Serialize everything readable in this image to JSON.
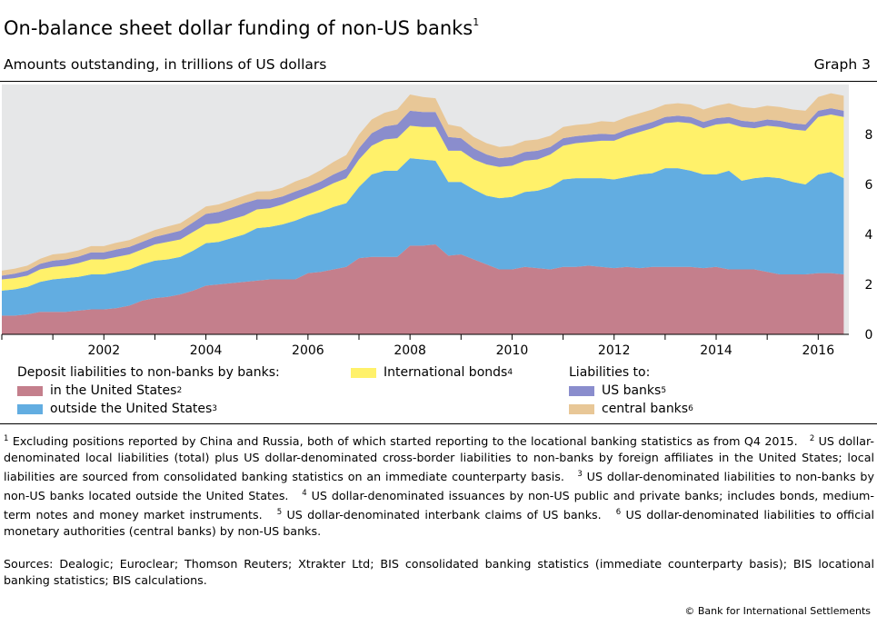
{
  "header": {
    "title": "On-balance sheet dollar funding of non-US banks",
    "title_note": "1",
    "subtitle": "Amounts outstanding, in trillions of US dollars",
    "graph_label": "Graph 3"
  },
  "legend": {
    "group1_heading": "Deposit liabilities to non-banks by banks:",
    "group2_heading": "Liabilities to:",
    "items": [
      {
        "label": "in the United States",
        "note": "2",
        "color": "#c47f8c"
      },
      {
        "label": "outside the United States",
        "note": "3",
        "color": "#62ade1"
      },
      {
        "label": "International bonds",
        "note": "4",
        "color": "#fff16a"
      },
      {
        "label": "US banks",
        "note": "5",
        "color": "#8a8dcd"
      },
      {
        "label": "central banks",
        "note": "6",
        "color": "#e8c797"
      }
    ]
  },
  "chart_data": {
    "type": "area",
    "stacked": true,
    "x": [
      2000.0,
      2000.25,
      2000.5,
      2000.75,
      2001.0,
      2001.25,
      2001.5,
      2001.75,
      2002.0,
      2002.25,
      2002.5,
      2002.75,
      2003.0,
      2003.25,
      2003.5,
      2003.75,
      2004.0,
      2004.25,
      2004.5,
      2004.75,
      2005.0,
      2005.25,
      2005.5,
      2005.75,
      2006.0,
      2006.25,
      2006.5,
      2006.75,
      2007.0,
      2007.25,
      2007.5,
      2007.75,
      2008.0,
      2008.25,
      2008.5,
      2008.75,
      2009.0,
      2009.25,
      2009.5,
      2009.75,
      2010.0,
      2010.25,
      2010.5,
      2010.75,
      2011.0,
      2011.25,
      2011.5,
      2011.75,
      2012.0,
      2012.25,
      2012.5,
      2012.75,
      2013.0,
      2013.25,
      2013.5,
      2013.75,
      2014.0,
      2014.25,
      2014.5,
      2014.75,
      2015.0,
      2015.25,
      2015.5,
      2015.75,
      2016.0,
      2016.25,
      2016.5
    ],
    "series": [
      {
        "name": "in the United States",
        "values": [
          0.75,
          0.75,
          0.8,
          0.9,
          0.9,
          0.9,
          0.95,
          1.0,
          1.0,
          1.05,
          1.15,
          1.35,
          1.45,
          1.5,
          1.6,
          1.75,
          1.95,
          2.0,
          2.05,
          2.1,
          2.15,
          2.2,
          2.2,
          2.2,
          2.45,
          2.5,
          2.6,
          2.7,
          3.05,
          3.1,
          3.1,
          3.1,
          3.55,
          3.55,
          3.6,
          3.15,
          3.2,
          3.0,
          2.8,
          2.6,
          2.6,
          2.7,
          2.65,
          2.6,
          2.7,
          2.7,
          2.75,
          2.7,
          2.65,
          2.7,
          2.65,
          2.7,
          2.7,
          2.7,
          2.7,
          2.65,
          2.7,
          2.6,
          2.6,
          2.6,
          2.5,
          2.4,
          2.4,
          2.4,
          2.45,
          2.45,
          2.4
        ]
      },
      {
        "name": "outside the United States",
        "values": [
          1.0,
          1.05,
          1.1,
          1.2,
          1.3,
          1.35,
          1.35,
          1.4,
          1.4,
          1.45,
          1.45,
          1.45,
          1.5,
          1.5,
          1.5,
          1.6,
          1.7,
          1.7,
          1.8,
          1.9,
          2.1,
          2.1,
          2.2,
          2.35,
          2.3,
          2.4,
          2.5,
          2.55,
          2.85,
          3.3,
          3.45,
          3.45,
          3.5,
          3.45,
          3.35,
          2.95,
          2.9,
          2.8,
          2.75,
          2.85,
          2.9,
          3.0,
          3.1,
          3.3,
          3.5,
          3.55,
          3.5,
          3.55,
          3.55,
          3.6,
          3.75,
          3.75,
          3.95,
          3.95,
          3.85,
          3.75,
          3.7,
          3.95,
          3.55,
          3.65,
          3.8,
          3.85,
          3.7,
          3.6,
          3.95,
          4.05,
          3.85
        ]
      },
      {
        "name": "International bonds",
        "values": [
          0.45,
          0.45,
          0.45,
          0.5,
          0.5,
          0.5,
          0.55,
          0.6,
          0.6,
          0.6,
          0.6,
          0.6,
          0.65,
          0.7,
          0.7,
          0.75,
          0.75,
          0.75,
          0.75,
          0.75,
          0.75,
          0.75,
          0.8,
          0.85,
          0.85,
          0.9,
          0.95,
          1.0,
          1.1,
          1.15,
          1.25,
          1.3,
          1.3,
          1.3,
          1.35,
          1.25,
          1.25,
          1.2,
          1.25,
          1.25,
          1.25,
          1.25,
          1.25,
          1.3,
          1.35,
          1.4,
          1.45,
          1.5,
          1.55,
          1.65,
          1.7,
          1.8,
          1.8,
          1.85,
          1.9,
          1.85,
          2.0,
          1.9,
          2.15,
          2.0,
          2.05,
          2.05,
          2.1,
          2.15,
          2.3,
          2.3,
          2.45
        ]
      },
      {
        "name": "US banks",
        "values": [
          0.15,
          0.18,
          0.2,
          0.22,
          0.25,
          0.25,
          0.26,
          0.28,
          0.28,
          0.3,
          0.3,
          0.3,
          0.3,
          0.32,
          0.35,
          0.38,
          0.42,
          0.45,
          0.47,
          0.5,
          0.4,
          0.35,
          0.32,
          0.32,
          0.3,
          0.32,
          0.35,
          0.38,
          0.45,
          0.5,
          0.52,
          0.55,
          0.6,
          0.6,
          0.6,
          0.55,
          0.5,
          0.45,
          0.4,
          0.35,
          0.35,
          0.35,
          0.35,
          0.3,
          0.3,
          0.28,
          0.28,
          0.28,
          0.25,
          0.25,
          0.25,
          0.25,
          0.25,
          0.25,
          0.25,
          0.25,
          0.25,
          0.25,
          0.25,
          0.25,
          0.25,
          0.25,
          0.25,
          0.25,
          0.25,
          0.25,
          0.25
        ]
      },
      {
        "name": "central banks",
        "values": [
          0.2,
          0.2,
          0.2,
          0.2,
          0.25,
          0.25,
          0.25,
          0.25,
          0.25,
          0.27,
          0.27,
          0.28,
          0.28,
          0.3,
          0.3,
          0.3,
          0.3,
          0.3,
          0.3,
          0.3,
          0.32,
          0.33,
          0.35,
          0.4,
          0.4,
          0.45,
          0.5,
          0.55,
          0.55,
          0.55,
          0.55,
          0.6,
          0.65,
          0.6,
          0.55,
          0.5,
          0.45,
          0.45,
          0.45,
          0.45,
          0.45,
          0.45,
          0.45,
          0.45,
          0.45,
          0.45,
          0.45,
          0.5,
          0.5,
          0.5,
          0.5,
          0.5,
          0.5,
          0.5,
          0.5,
          0.5,
          0.5,
          0.55,
          0.55,
          0.55,
          0.55,
          0.55,
          0.55,
          0.55,
          0.55,
          0.6,
          0.6
        ]
      }
    ],
    "colors": [
      "#c47f8c",
      "#62ade1",
      "#fff16a",
      "#8a8dcd",
      "#e8c797"
    ],
    "xlim": [
      2000.0,
      2016.6
    ],
    "ylim": [
      0,
      10
    ],
    "x_ticks": [
      "2002",
      "2004",
      "2006",
      "2008",
      "2010",
      "2012",
      "2014",
      "2016"
    ],
    "x_tick_values": [
      2002,
      2004,
      2006,
      2008,
      2010,
      2012,
      2014,
      2016
    ],
    "y_ticks": [
      "0",
      "2",
      "4",
      "6",
      "8"
    ],
    "y_tick_values": [
      0,
      2,
      4,
      6,
      8
    ],
    "yaxis_side": "right",
    "background": "#e6e7e8",
    "grid": false,
    "legend_placement": "bottom"
  },
  "footnotes": [
    {
      "mark": "1",
      "text": "Excluding positions reported by China and Russia, both of which started reporting to the locational banking statistics as from Q4 2015."
    },
    {
      "mark": "2",
      "text": "US dollar-denominated local liabilities (total) plus US dollar-denominated cross-border liabilities to non-banks by foreign affiliates in the United States; local liabilities are sourced from consolidated banking statistics on an immediate counterparty basis."
    },
    {
      "mark": "3",
      "text": "US dollar-denominated liabilities to non-banks by non-US banks located outside the United States."
    },
    {
      "mark": "4",
      "text": "US dollar-denominated issuances by non-US public and private banks; includes bonds, medium-term notes and money market instruments."
    },
    {
      "mark": "5",
      "text": "US dollar-denominated interbank claims of US banks."
    },
    {
      "mark": "6",
      "text": "US dollar-denominated liabilities to official monetary authorities (central banks) by non-US banks."
    }
  ],
  "sources": "Sources: Dealogic; Euroclear; Thomson Reuters; Xtrakter Ltd; BIS consolidated banking statistics (immediate counterparty basis); BIS locational banking statistics; BIS calculations.",
  "copyright": "© Bank for International Settlements"
}
